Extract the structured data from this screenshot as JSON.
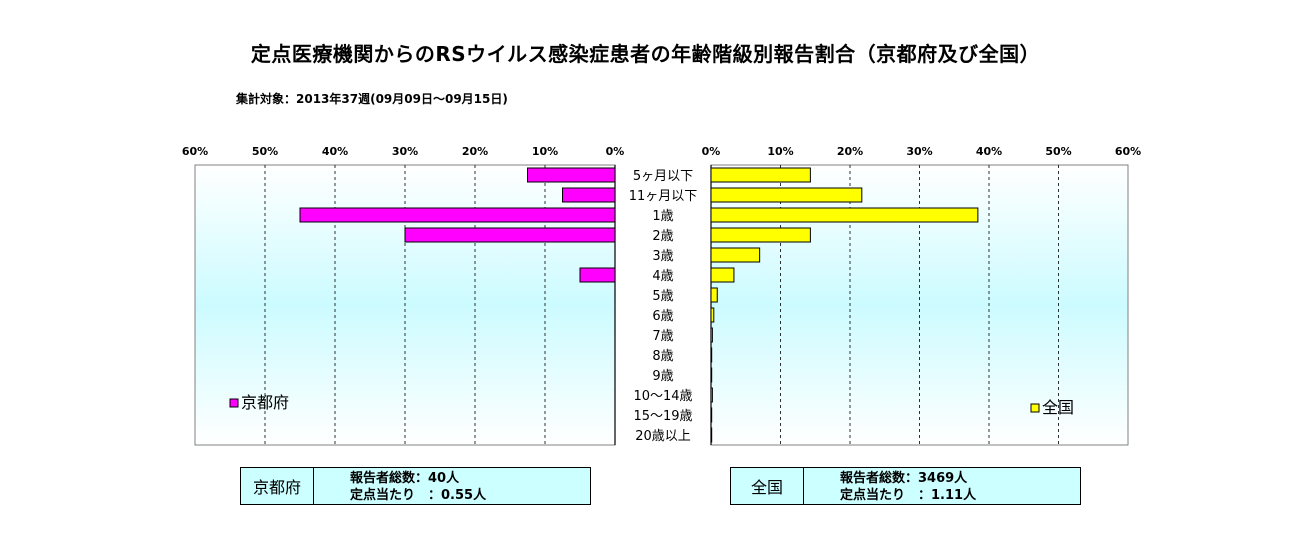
{
  "title": "定点医療機関からのRSウイルス感染症患者の年齢階級別報告割合（京都府及び全国）",
  "subtitle": "集計対象：2013年37週(09月09日～09月15日)",
  "chart_data": [
    {
      "type": "bar",
      "orientation": "horizontal",
      "direction": "right-to-left",
      "series": [
        {
          "name": "京都府",
          "values": [
            12.5,
            7.5,
            45,
            30,
            0,
            5,
            0,
            0,
            0,
            0,
            0,
            0,
            0,
            0
          ],
          "color": "#ff00ff"
        }
      ],
      "xlim": [
        0,
        60
      ],
      "ticks": [
        "60%",
        "50%",
        "40%",
        "30%",
        "20%",
        "10%",
        "0%"
      ],
      "legend_position": "bottom-left"
    },
    {
      "type": "bar",
      "orientation": "horizontal",
      "direction": "left-to-right",
      "series": [
        {
          "name": "全国",
          "values": [
            14.3,
            21.7,
            38.4,
            14.3,
            7.0,
            3.3,
            0.9,
            0.4,
            0.2,
            0.1,
            0.1,
            0.2,
            0.1,
            0.1
          ],
          "color": "#ffff00"
        }
      ],
      "xlim": [
        0,
        60
      ],
      "ticks": [
        "0%",
        "10%",
        "20%",
        "30%",
        "40%",
        "50%",
        "60%"
      ],
      "legend_position": "bottom-right"
    }
  ],
  "categories": [
    "5ヶ月以下",
    "11ヶ月以下",
    "1歳",
    "2歳",
    "3歳",
    "4歳",
    "5歳",
    "6歳",
    "7歳",
    "8歳",
    "9歳",
    "10～14歳",
    "15～19歳",
    "20歳以上"
  ],
  "boxes": {
    "kyoto": {
      "name": "京都府",
      "line1": "報告者総数：40人",
      "line2": "定点当たり　：0.55人"
    },
    "national": {
      "name": "全国",
      "line1": "報告者総数：3469人",
      "line2": "定点当たり　：1.11人"
    }
  }
}
